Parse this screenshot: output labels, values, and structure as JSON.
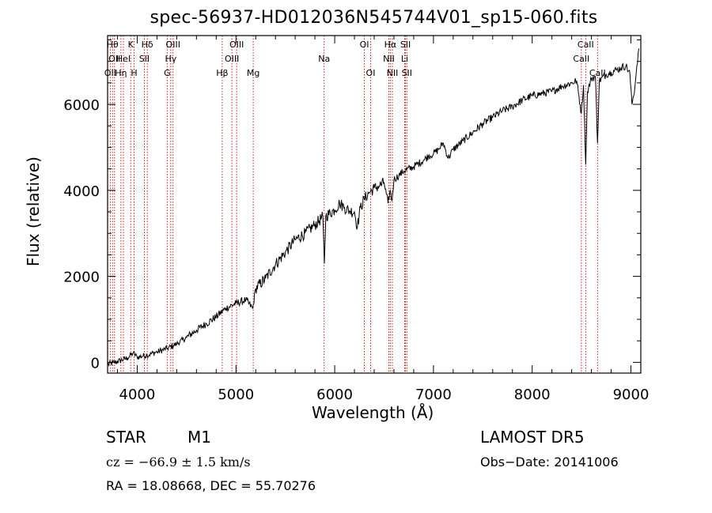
{
  "chart_data": {
    "type": "line",
    "title": "spec-56937-HD012036N545744V01_sp15-060.fits",
    "xlabel": "Wavelength (Å)",
    "ylabel": "Flux (relative)",
    "xlim": [
      3700,
      9100
    ],
    "ylim": [
      -250,
      7600
    ],
    "xticks": [
      4000,
      5000,
      6000,
      7000,
      8000,
      9000
    ],
    "yticks": [
      0,
      2000,
      4000,
      6000
    ],
    "grid": false,
    "series": [
      {
        "x": [
          3700,
          3800,
          3900,
          3960,
          4000,
          4100,
          4200,
          4300,
          4400,
          4500,
          4600,
          4700,
          4800,
          4900,
          5000,
          5100,
          5170,
          5200,
          5300,
          5400,
          5500,
          5600,
          5700,
          5800,
          5880,
          5895,
          5910,
          6000,
          6050,
          6100,
          6150,
          6200,
          6230,
          6260,
          6300,
          6350,
          6400,
          6450,
          6500,
          6540,
          6562,
          6580,
          6600,
          6650,
          6700,
          6800,
          6900,
          6950,
          7000,
          7050,
          7100,
          7150,
          7200,
          7300,
          7400,
          7500,
          7600,
          7700,
          7800,
          7900,
          8000,
          8100,
          8200,
          8300,
          8400,
          8450,
          8498,
          8520,
          8542,
          8560,
          8600,
          8640,
          8662,
          8680,
          8750,
          8800,
          8850,
          8900,
          8950,
          8990,
          9010,
          9040,
          9060,
          9080
        ],
        "y": [
          -50,
          20,
          100,
          220,
          120,
          170,
          240,
          320,
          430,
          580,
          750,
          900,
          1060,
          1260,
          1370,
          1450,
          1250,
          1720,
          1950,
          2280,
          2560,
          2850,
          3000,
          3200,
          3380,
          2300,
          3400,
          3550,
          3700,
          3600,
          3520,
          3500,
          3150,
          3600,
          3800,
          3950,
          4050,
          4100,
          4180,
          3700,
          4000,
          3750,
          4250,
          4350,
          4450,
          4550,
          4700,
          4800,
          4850,
          4950,
          5100,
          4750,
          4950,
          5150,
          5350,
          5550,
          5700,
          5850,
          5950,
          6100,
          6200,
          6250,
          6300,
          6420,
          6500,
          6550,
          5800,
          6450,
          4600,
          6300,
          6600,
          6650,
          5100,
          6550,
          6700,
          6750,
          6800,
          6850,
          6900,
          6700,
          6000,
          6400,
          6900,
          7300
        ]
      }
    ],
    "lines": [
      {
        "x": 3727,
        "label": "OII",
        "row": 2
      },
      {
        "x": 3750,
        "label": "Hθ",
        "row": 0
      },
      {
        "x": 3770,
        "label": "OII",
        "row": 1
      },
      {
        "x": 3835,
        "label": "Hη",
        "row": 2
      },
      {
        "x": 3860,
        "label": "HeI",
        "row": 1
      },
      {
        "x": 3934,
        "label": "K",
        "row": 0
      },
      {
        "x": 3969,
        "label": "H",
        "row": 2
      },
      {
        "x": 4072,
        "label": "SII",
        "row": 1
      },
      {
        "x": 4102,
        "label": "Hδ",
        "row": 0
      },
      {
        "x": 4304,
        "label": "G",
        "row": 2
      },
      {
        "x": 4340,
        "label": "Hγ",
        "row": 1
      },
      {
        "x": 4363,
        "label": "OIII",
        "row": 0
      },
      {
        "x": 4861,
        "label": "Hβ",
        "row": 2
      },
      {
        "x": 4959,
        "label": "OIII",
        "row": 1
      },
      {
        "x": 5007,
        "label": "OIII",
        "row": 0
      },
      {
        "x": 5175,
        "label": "Mg",
        "row": 2
      },
      {
        "x": 5893,
        "label": "Na",
        "row": 1
      },
      {
        "x": 6300,
        "label": "OI",
        "row": 0
      },
      {
        "x": 6364,
        "label": "OI",
        "row": 2
      },
      {
        "x": 6548,
        "label": "NII",
        "row": 1
      },
      {
        "x": 6563,
        "label": "Hα",
        "row": 0
      },
      {
        "x": 6584,
        "label": "NII",
        "row": 2
      },
      {
        "x": 6708,
        "label": "Li",
        "row": 1
      },
      {
        "x": 6717,
        "label": "SII",
        "row": 0
      },
      {
        "x": 6731,
        "label": "SII",
        "row": 2
      },
      {
        "x": 8498,
        "label": "CaII",
        "row": 1
      },
      {
        "x": 8542,
        "label": "CaII",
        "row": 0
      },
      {
        "x": 8662,
        "label": "CaII",
        "row": 2
      }
    ]
  },
  "info": {
    "object_type": "STAR",
    "subclass": "M1",
    "survey": "LAMOST DR5",
    "cz": "cz = −66.9 ± 1.5 km/s",
    "obs_date": "Obs−Date: 20141006",
    "coords": "RA =  18.08668, DEC =  55.70276"
  }
}
